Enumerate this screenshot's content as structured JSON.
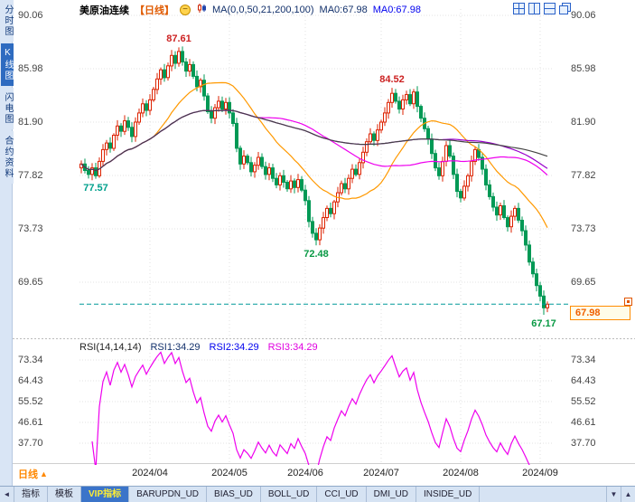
{
  "header": {
    "symbol": "美原油连续",
    "period_tag": "【日线】",
    "ma_settings": "MA(0,0,50,21,200,100)",
    "ma_value_1": "MA0:67.98",
    "ma_value_2": "MA0:67.98"
  },
  "sidebar": {
    "items": [
      {
        "label": "分时图",
        "active": false
      },
      {
        "label": "K线图",
        "active": true
      },
      {
        "label": "闪电图",
        "active": false
      },
      {
        "label": "合约资料",
        "active": false
      }
    ]
  },
  "window_controls": {
    "icons": [
      "grid-layout-icon",
      "tile-vertical-icon",
      "tile-horizontal-icon",
      "cascade-windows-icon"
    ]
  },
  "chart_data": {
    "type": "candlestick",
    "title": "美原油连续 日线",
    "price_axis": [
      90.06,
      85.98,
      81.9,
      77.82,
      73.73,
      69.65
    ],
    "rsi_axis": [
      73.34,
      64.43,
      55.52,
      46.61,
      37.7
    ],
    "x_axis_labels": [
      "2024/04",
      "2024/05",
      "2024/06",
      "2024/07",
      "2024/08",
      "2024/09"
    ],
    "month_tick_indices": [
      19,
      41,
      62,
      83,
      105,
      127
    ],
    "current_price": 67.98,
    "candles": {
      "first_open": 78.4,
      "closes": [
        78.7,
        78.2,
        77.9,
        78.4,
        77.8,
        78.9,
        79.8,
        80.3,
        79.9,
        80.9,
        81.6,
        81.2,
        82.0,
        81.5,
        80.8,
        81.9,
        82.6,
        83.3,
        82.8,
        83.6,
        84.4,
        85.2,
        85.9,
        85.3,
        86.2,
        87.0,
        86.4,
        87.3,
        86.5,
        85.8,
        86.3,
        85.4,
        84.6,
        85.1,
        83.9,
        82.7,
        82.2,
        83.0,
        83.5,
        82.9,
        83.4,
        82.6,
        81.8,
        79.9,
        78.7,
        79.3,
        78.8,
        78.1,
        78.6,
        79.2,
        78.5,
        77.9,
        78.4,
        77.6,
        77.1,
        77.8,
        77.3,
        76.8,
        77.4,
        76.9,
        77.5,
        76.7,
        75.9,
        74.3,
        73.4,
        72.9,
        73.8,
        74.6,
        75.3,
        74.9,
        75.8,
        76.5,
        77.2,
        76.8,
        77.6,
        78.3,
        77.9,
        78.8,
        79.6,
        80.4,
        81.0,
        80.5,
        81.3,
        81.9,
        82.6,
        83.4,
        84.1,
        83.5,
        82.9,
        83.6,
        84.0,
        83.3,
        84.2,
        83.1,
        82.2,
        81.4,
        80.6,
        79.5,
        78.4,
        77.8,
        78.9,
        80.1,
        79.3,
        77.9,
        76.6,
        76.1,
        77.0,
        77.8,
        78.9,
        79.8,
        79.2,
        78.3,
        77.1,
        76.2,
        75.4,
        74.8,
        75.5,
        74.6,
        73.9,
        74.7,
        75.3,
        74.4,
        73.6,
        72.5,
        71.2,
        70.3,
        69.4,
        68.6,
        67.7,
        67.98
      ]
    },
    "extremes": [
      {
        "index": 4,
        "low": 77.57
      },
      {
        "index": 27,
        "high": 87.61
      },
      {
        "index": 65,
        "low": 72.48
      },
      {
        "index": 86,
        "high": 84.52
      },
      {
        "index": 128,
        "low": 67.17
      }
    ],
    "annotations": [
      {
        "text": "87.61",
        "index": 27,
        "price": 87.61,
        "placement": "above",
        "color": "#cc2222"
      },
      {
        "text": "84.52",
        "index": 86,
        "price": 84.52,
        "placement": "above",
        "color": "#cc2222"
      },
      {
        "text": "77.57",
        "index": 4,
        "price": 77.57,
        "placement": "below",
        "color": "#00a08c"
      },
      {
        "text": "72.48",
        "index": 65,
        "price": 72.48,
        "placement": "below",
        "color": "#089944"
      },
      {
        "text": "67.17",
        "index": 128,
        "price": 67.17,
        "placement": "below",
        "color": "#089944"
      }
    ],
    "moving_averages": [
      {
        "period": 21,
        "color": "#ff9900"
      },
      {
        "period": 50,
        "color": "#ee00ee"
      },
      {
        "period": 100,
        "color": "#9900cc"
      },
      {
        "period": 200,
        "color": "#444444"
      }
    ],
    "rsi": {
      "period": 14,
      "color": "#ee00ee"
    },
    "colors": {
      "up": "#dd2200",
      "down": "#009955",
      "current_line": "#009999",
      "grid": "#e3e3e3"
    }
  },
  "rsi_header": {
    "title": "RSI(14,14,14)",
    "rsi1": "RSI1:34.29",
    "rsi2": "RSI2:34.29",
    "rsi3": "RSI3:34.29"
  },
  "price_box": {
    "value": "67.98"
  },
  "bottom": {
    "period_label": "日线"
  },
  "tabs": {
    "items": [
      {
        "label": "指标",
        "active": false
      },
      {
        "label": "模板",
        "active": false
      },
      {
        "label": "VIP指标",
        "active": true
      },
      {
        "label": "BARUPDN_UD",
        "active": false
      },
      {
        "label": "BIAS_UD",
        "active": false
      },
      {
        "label": "BOLL_UD",
        "active": false
      },
      {
        "label": "CCI_UD",
        "active": false
      },
      {
        "label": "DMI_UD",
        "active": false
      },
      {
        "label": "INSIDE_UD",
        "active": false
      }
    ]
  }
}
